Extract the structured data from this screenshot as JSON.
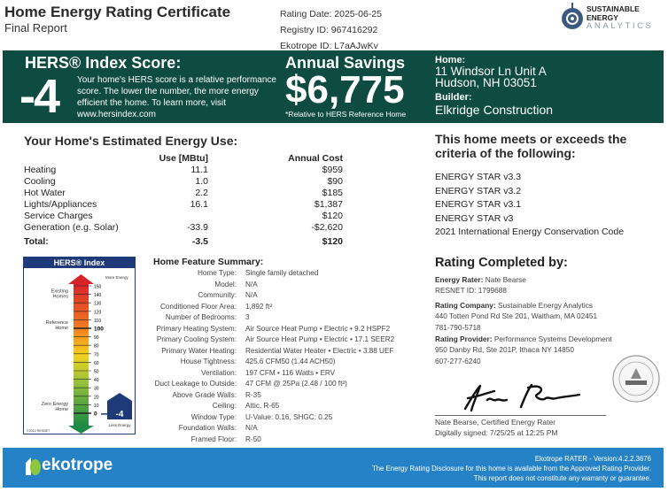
{
  "header": {
    "title": "Home Energy Rating Certificate",
    "subtitle": "Final Report",
    "rating_date": "Rating Date: 2025-06-25",
    "registry_id": "Registry ID: 967416292",
    "ekotrope_id": "Ekotrope ID: L7aAJwKv",
    "logo": {
      "line1": "SUSTAINABLE",
      "line2": "ENERGY",
      "line3": "ANALYTICS"
    }
  },
  "banner": {
    "hers_heading": "HERS® Index Score:",
    "hers_score": "-4",
    "hers_text": "Your home's HERS score is a relative performance score. The lower the number, the more energy efficient the home. To learn more, visit www.hersindex.com",
    "savings_heading": "Annual Savings",
    "savings_value": "$6,775",
    "savings_note": "*Relative to HERS Reference Home",
    "home_label": "Home:",
    "home_line1": "11 Windsor Ln Unit A",
    "home_line2": "Hudson, NH 03051",
    "builder_label": "Builder:",
    "builder": "Elkridge Construction",
    "bg_color": "#0e4b40"
  },
  "energy": {
    "title": "Your Home's Estimated Energy Use:",
    "col_use": "Use [MBtu]",
    "col_cost": "Annual Cost",
    "rows": [
      {
        "name": "Heating",
        "use": "11.1",
        "cost": "$959"
      },
      {
        "name": "Cooling",
        "use": "1.0",
        "cost": "$90"
      },
      {
        "name": "Hot Water",
        "use": "2.2",
        "cost": "$185"
      },
      {
        "name": "Lights/Appliances",
        "use": "16.1",
        "cost": "$1,387"
      },
      {
        "name": "Service Charges",
        "use": "",
        "cost": "$120"
      },
      {
        "name": "Generation (e.g. Solar)",
        "use": "-33.9",
        "cost": "-$2,620"
      }
    ],
    "total": {
      "name": "Total:",
      "use": "-3.5",
      "cost": "$120"
    }
  },
  "criteria": {
    "title_line1": "This home meets or exceeds the",
    "title_line2": "criteria of the following:",
    "items": [
      "ENERGY STAR v3.3",
      "ENERGY STAR v3.2",
      "ENERGY STAR v3.1",
      "ENERGY STAR v3",
      "2021 International Energy Conservation Code"
    ]
  },
  "hers_index": {
    "title": "HERS® Index",
    "more_energy": "More Energy",
    "existing": "Existing Homes",
    "reference": "Reference Home",
    "zero": "Zero Energy Home",
    "this_home": "-4",
    "less_energy": "Less Energy",
    "copyright": "©2012 RESNET",
    "ticks": [
      150,
      140,
      130,
      120,
      110,
      100,
      90,
      80,
      70,
      60,
      50,
      40,
      30,
      20,
      10,
      0
    ],
    "score": -4
  },
  "features": {
    "title": "Home Feature Summary:",
    "rows": [
      {
        "label": "Home Type:",
        "value": "Single family detached"
      },
      {
        "label": "Model:",
        "value": "N/A"
      },
      {
        "label": "Community:",
        "value": "N/A"
      },
      {
        "label": "Conditioned Floor Area:",
        "value": "1,892 ft²"
      },
      {
        "label": "Number of Bedrooms:",
        "value": "3"
      },
      {
        "label": "Primary Heating System:",
        "value": "Air Source Heat Pump • Electric • 9.2 HSPF2"
      },
      {
        "label": "Primary Cooling System:",
        "value": "Air Source Heat Pump • Electric • 17.1 SEER2"
      },
      {
        "label": "Primary Water Heating:",
        "value": "Residential Water Heater • Electric • 3.88 UEF"
      },
      {
        "label": "House Tightness:",
        "value": "425.6 CFM50 (1.44 ACH50)"
      },
      {
        "label": "Ventilation:",
        "value": "197 CFM • 116 Watts • ERV"
      },
      {
        "label": "Duct Leakage to Outside:",
        "value": "47 CFM @ 25Pa (2.48 / 100 ft²)"
      },
      {
        "label": "Above Grade Walls:",
        "value": "R-35"
      },
      {
        "label": "Ceiling:",
        "value": "Attic, R-65"
      },
      {
        "label": "Window Type:",
        "value": "U-Value: 0.16, SHGC: 0.25"
      },
      {
        "label": "Foundation Walls:",
        "value": "N/A"
      },
      {
        "label": "Framed Floor:",
        "value": "R-50"
      }
    ]
  },
  "rating": {
    "title": "Rating Completed by:",
    "rater_label": "Energy Rater:",
    "rater": "Nate Bearse",
    "resnet_id": "RESNET ID: 1799688",
    "company_label": "Rating Company:",
    "company": "Sustainable Energy Analytics",
    "company_addr": "440 Totten Pond Rd Ste 201, Waltham, MA 02451",
    "company_phone": "781-790-5718",
    "provider_label": "Rating Provider:",
    "provider": "Performance Systems Development",
    "provider_addr": "950 Danby Rd, Ste 201P, Ithaca NY 14850",
    "provider_phone": "607-277-6240",
    "signer": "Nate Bearse, Certified Energy Rater",
    "signed": "Digitally signed: 7/25/25 at 12:25 PM"
  },
  "footer": {
    "brand": "ekotrope",
    "version": "Ekotrope RATER - Version:4.2.2.3676",
    "line2": "The Energy Rating Disclosure for this home is available from the Approved Rating Provider.",
    "line3": "This report does not constitute any warranty or guarantee.",
    "bg_color": "#2582c6"
  }
}
